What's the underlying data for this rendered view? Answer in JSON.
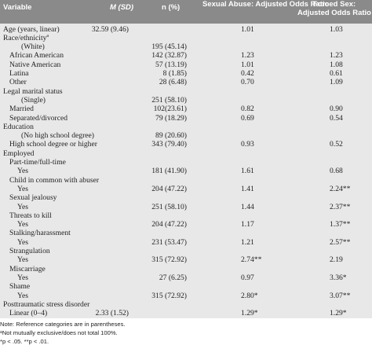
{
  "table": {
    "columns": [
      "Variable",
      "M (SD)",
      "n (%)",
      "Sexual Abuse: Adjusted Odds Ratio",
      "Forced Sex: Adjusted Odds Ratio"
    ],
    "rows": [
      {
        "label": "Age (years, linear)",
        "msd": "32.59 (9.46)",
        "sa": "1.01",
        "fs": "1.03"
      },
      {
        "label": "Race/ethnicity",
        "sup": "a"
      },
      {
        "label": "(White)",
        "n": "195 (45.14)"
      },
      {
        "label": "African American",
        "n": "142 (32.87)",
        "sa": "1.23",
        "fs": "1.23"
      },
      {
        "label": "Native American",
        "n": "57 (13.19)",
        "sa": "1.01",
        "fs": "1.08"
      },
      {
        "label": "Latina",
        "n": "8 (1.85)",
        "sa": "0.42",
        "fs": "0.61"
      },
      {
        "label": "Other",
        "n": "28 (6.48)",
        "sa": "0.70",
        "fs": "1.09"
      },
      {
        "label": "Legal marital status"
      },
      {
        "label": "(Single)",
        "n": "251 (58.10)"
      },
      {
        "label": "Married",
        "n": "102(23.61)",
        "sa": "0.82",
        "fs": "0.90"
      },
      {
        "label": "Separated/divorced",
        "n": "79 (18.29)",
        "sa": "0.69",
        "fs": "0.54"
      },
      {
        "label": "Education"
      },
      {
        "label": "(No high school degree)",
        "n": "89 (20.60)"
      },
      {
        "label": "High school degree or higher",
        "n": "343 (79.40)",
        "sa": "0.93",
        "fs": "0.52"
      },
      {
        "label": "Employed"
      },
      {
        "label": "Part-time/full-time"
      },
      {
        "label": "Yes",
        "n": "181 (41.90)",
        "sa": "1.61",
        "fs": "0.68"
      },
      {
        "label": "Child in common with abuser"
      },
      {
        "label": "Yes",
        "n": "204 (47.22)",
        "sa": "1.41",
        "fs": "2.24**"
      },
      {
        "label": "Sexual jealousy"
      },
      {
        "label": "Yes",
        "n": "251 (58.10)",
        "sa": "1.44",
        "fs": "2.37**"
      },
      {
        "label": "Threats to kill"
      },
      {
        "label": "Yes",
        "n": "204 (47.22)",
        "sa": "1.17",
        "fs": "1.37**"
      },
      {
        "label": "Stalking/harassment"
      },
      {
        "label": "Yes",
        "n": "231 (53.47)",
        "sa": "1.21",
        "fs": "2.57**"
      },
      {
        "label": "Strangulation"
      },
      {
        "label": "Yes",
        "n": "315 (72.92)",
        "sa": "2.74**",
        "fs": "2.19"
      },
      {
        "label": "Miscarriage"
      },
      {
        "label": "Yes",
        "n": "27 (6.25)",
        "sa": "0.97",
        "fs": "3.36*"
      },
      {
        "label": "Shame"
      },
      {
        "label": "Yes",
        "n": "315 (72.92)",
        "sa": "2.80*",
        "fs": "3.07**"
      },
      {
        "label": "Posttraumatic stress disorder"
      },
      {
        "label": "Linear (0–4)",
        "msd": "2.33 (1.52)",
        "sa": "1.29*",
        "fs": "1.29*"
      }
    ]
  },
  "notes": [
    "Note: Reference categories are in parentheses.",
    "ᵃNot mutually exclusive/does not total 100%.",
    "*p < .05. **p < .01."
  ]
}
